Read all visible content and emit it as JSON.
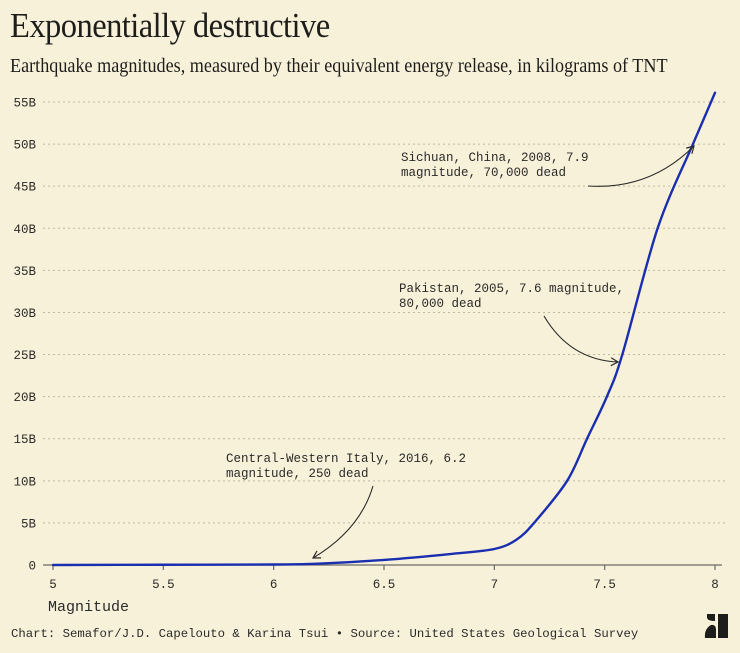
{
  "header": {
    "title": "Exponentially destructive",
    "subtitle": "Earthquake magnitudes, measured by their equivalent energy release, in kilograms of TNT"
  },
  "footer": {
    "credit": "Chart: Semafor/J.D. Capelouto & Karina Tsui • Source: United States Geological Survey",
    "logo": "semafor-logo-icon"
  },
  "colors": {
    "background": "#f8f1d9",
    "line": "#1a2fb0",
    "text": "#1f1f1f",
    "grid": "#bdb8a6"
  },
  "chart_data": {
    "type": "line",
    "title": "Exponentially destructive",
    "subtitle": "Earthquake magnitudes, measured by their equivalent energy release, in kilograms of TNT",
    "xlabel": "Magnitude",
    "ylabel": "",
    "xlim": [
      5,
      8
    ],
    "ylim": [
      0,
      55
    ],
    "x_ticks": [
      5,
      5.5,
      6,
      6.5,
      7,
      7.5,
      8
    ],
    "x_tick_labels": [
      "5",
      "5.5",
      "6",
      "6.5",
      "7",
      "7.5",
      "8"
    ],
    "y_ticks": [
      0,
      5,
      10,
      15,
      20,
      25,
      30,
      35,
      40,
      45,
      50,
      55
    ],
    "y_tick_labels": [
      "0",
      "5B",
      "10B",
      "15B",
      "20B",
      "25B",
      "30B",
      "35B",
      "40B",
      "45B",
      "50B",
      "55B"
    ],
    "grid": "horizontal dotted",
    "legend": "none",
    "unit": "billion kg TNT",
    "series": [
      {
        "name": "Energy release",
        "x": [
          5.0,
          5.5,
          6.0,
          6.2,
          6.5,
          6.8,
          7.0,
          7.1,
          7.18,
          7.33,
          7.42,
          7.51,
          7.58,
          7.74,
          7.9,
          8.0
        ],
        "values": [
          0.0,
          0.03,
          0.06,
          0.15,
          0.6,
          1.3,
          1.9,
          3.0,
          5.0,
          10.0,
          15.0,
          20.0,
          25.0,
          40.0,
          50.0,
          56.1
        ]
      }
    ],
    "annotations": [
      {
        "lines": [
          "Sichuan, China, 2008, 7.9",
          "magnitude, 70,000 dead"
        ],
        "x": 7.9,
        "y": 50.0
      },
      {
        "lines": [
          "Pakistan, 2005, 7.6 magnitude,",
          "80,000 dead"
        ],
        "x": 7.56,
        "y": 24.5
      },
      {
        "lines": [
          "Central-Western Italy, 2016, 6.2",
          "magnitude, 250 dead"
        ],
        "x": 6.18,
        "y": 0.5
      }
    ]
  }
}
